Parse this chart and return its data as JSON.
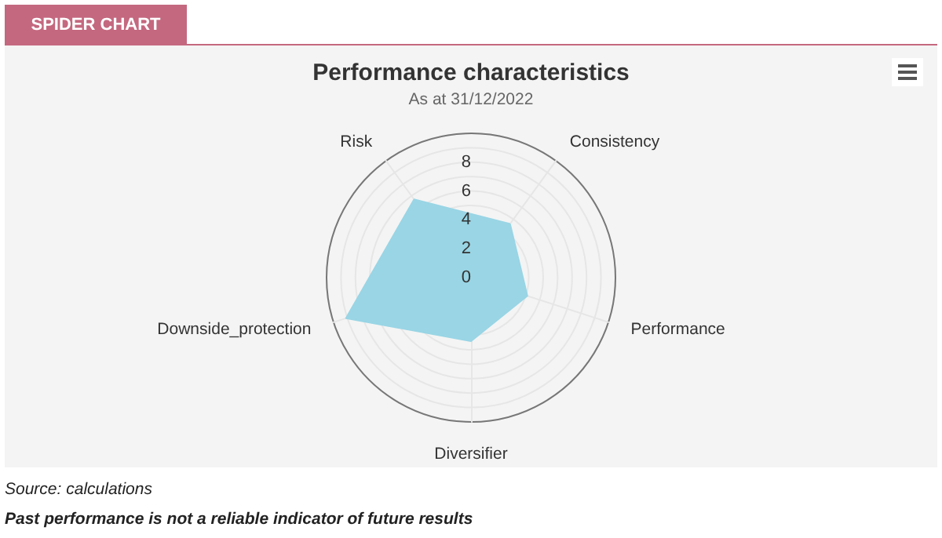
{
  "chart_data": {
    "type": "radar",
    "title": "Performance characteristics",
    "subtitle": "As at 31/12/2022",
    "categories": [
      "Consistency",
      "Performance",
      "Diversifier",
      "Downside_protection",
      "Risk"
    ],
    "series": [
      {
        "color": "#99d5e5",
        "values": [
          4.6,
          4.1,
          4.4,
          9.1,
          6.7
        ]
      }
    ],
    "ylim": [
      0,
      10
    ],
    "yticks": [
      0,
      2,
      4,
      6,
      8
    ],
    "grid": true,
    "annotations": [
      "SPIDER CHART",
      "Source: calculations",
      "Past performance is not a reliable indicator of future results"
    ]
  }
}
